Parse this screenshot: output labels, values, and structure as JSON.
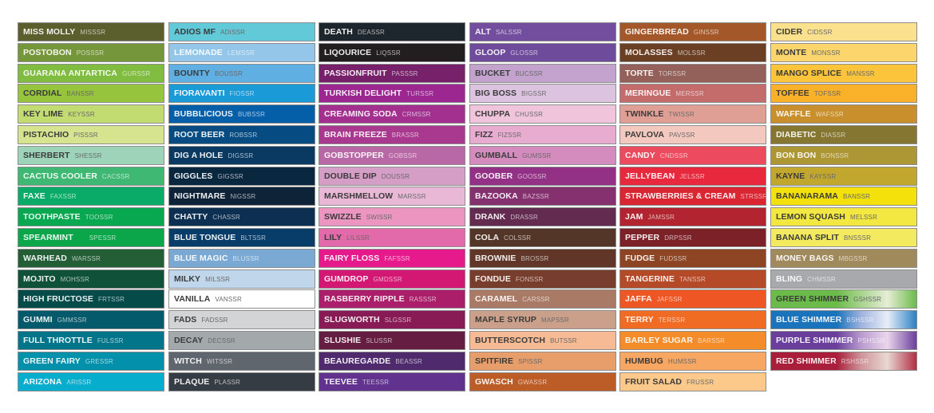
{
  "columns": [
    [
      {
        "name": "MISS MOLLY",
        "code": "MISSSR",
        "color": "#5b5e2d",
        "text": "light"
      },
      {
        "name": "POSTOBON",
        "code": "POSSSR",
        "color": "#76963b",
        "text": "light"
      },
      {
        "name": "GUARANA ANTARTICA",
        "code": "GURSSR",
        "color": "#80bc40",
        "text": "light"
      },
      {
        "name": "CORDIAL",
        "code": "BANSSR",
        "color": "#96c43c",
        "text": "dark"
      },
      {
        "name": "KEY LIME",
        "code": "KEYSSR",
        "color": "#c2dc72",
        "text": "dark"
      },
      {
        "name": "PISTACHIO",
        "code": "PISSSR",
        "color": "#d6e490",
        "text": "dark"
      },
      {
        "name": "SHERBERT",
        "code": "SHESSR",
        "color": "#9dd3b8",
        "text": "dark"
      },
      {
        "name": "CACTUS COOLER",
        "code": "CACSSR",
        "color": "#3fb874",
        "text": "light"
      },
      {
        "name": "FAXE",
        "code": "FAXSSR",
        "color": "#0aab68",
        "text": "light"
      },
      {
        "name": "TOOTHPASTE",
        "code": "TOOSSR",
        "color": "#07a84f",
        "text": "light"
      },
      {
        "name": "SPEARMINT",
        "code": "SPESSR",
        "color": "#0ba64a",
        "text": "light"
      },
      {
        "name": "WARHEAD",
        "code": "WARSSR",
        "color": "#245e37",
        "text": "light"
      },
      {
        "name": "MOJITO",
        "code": "MOHSSR",
        "color": "#0f5239",
        "text": "light"
      },
      {
        "name": "HIGH FRUCTOSE",
        "code": "FRTSSR",
        "color": "#044b4a",
        "text": "light"
      },
      {
        "name": "GUMMI",
        "code": "GMMSSR",
        "color": "#04596a",
        "text": "light"
      },
      {
        "name": "FULL THROTTLE",
        "code": "FULSSR",
        "color": "#03758a",
        "text": "light"
      },
      {
        "name": "GREEN FAIRY",
        "code": "GRESSR",
        "color": "#0390ab",
        "text": "light"
      },
      {
        "name": "ARIZONA",
        "code": "ARISSR",
        "color": "#06adcc",
        "text": "light"
      }
    ],
    [
      {
        "name": "ADIOS MF",
        "code": "ADISSR",
        "color": "#62c9d9",
        "text": "dark"
      },
      {
        "name": "LEMONADE",
        "code": "LEMSSR",
        "color": "#93c6e8",
        "text": "light"
      },
      {
        "name": "BOUNTY",
        "code": "BOUSSR",
        "color": "#5fafe2",
        "text": "dark"
      },
      {
        "name": "FIORAVANTI",
        "code": "FIOSSR",
        "color": "#1a9ad6",
        "text": "light"
      },
      {
        "name": "BUBBLICIOUS",
        "code": "BUBSSR",
        "color": "#045ea8",
        "text": "light"
      },
      {
        "name": "ROOT BEER",
        "code": "ROBSSR",
        "color": "#064c82",
        "text": "light"
      },
      {
        "name": "DIG A HOLE",
        "code": "DIGSSR",
        "color": "#0a3a62",
        "text": "light"
      },
      {
        "name": "GIGGLES",
        "code": "GIGSSR",
        "color": "#0a2740",
        "text": "light"
      },
      {
        "name": "NIGHTMARE",
        "code": "NIGSSR",
        "color": "#0e2238",
        "text": "light"
      },
      {
        "name": "CHATTY",
        "code": "CHASSR",
        "color": "#0c2f52",
        "text": "light"
      },
      {
        "name": "BLUE TONGUE",
        "code": "BLTSSR",
        "color": "#093d69",
        "text": "light"
      },
      {
        "name": "BLUE MAGIC",
        "code": "BLUSSR",
        "color": "#7aa9d3",
        "text": "light"
      },
      {
        "name": "MILKY",
        "code": "MILSSR",
        "color": "#c0d6eb",
        "text": "dark"
      },
      {
        "name": "VANILLA",
        "code": "VANSSR",
        "color": "#ffffff",
        "text": "dark"
      },
      {
        "name": "FADS",
        "code": "FADSSR",
        "color": "#d3d4d6",
        "text": "dark"
      },
      {
        "name": "DECAY",
        "code": "DECSSR",
        "color": "#a3a8ab",
        "text": "dark"
      },
      {
        "name": "WITCH",
        "code": "WITSSR",
        "color": "#5f666d",
        "text": "light"
      },
      {
        "name": "PLAQUE",
        "code": "PLASSR",
        "color": "#363c44",
        "text": "light"
      }
    ],
    [
      {
        "name": "DEATH",
        "code": "DEASSR",
        "color": "#1d252d",
        "text": "light"
      },
      {
        "name": "LIQOURICE",
        "code": "LIQSSR",
        "color": "#221e20",
        "text": "light"
      },
      {
        "name": "PASSIONFRUIT",
        "code": "PASSSR",
        "color": "#76216a",
        "text": "light"
      },
      {
        "name": "TURKISH DELIGHT",
        "code": "TURSSR",
        "color": "#9c2790",
        "text": "light"
      },
      {
        "name": "CREAMING SODA",
        "code": "CRMSSR",
        "color": "#a3308f",
        "text": "light"
      },
      {
        "name": "BRAIN FREEZE",
        "code": "BRASSR",
        "color": "#a8398e",
        "text": "light"
      },
      {
        "name": "GOBSTOPPER",
        "code": "GOBSSR",
        "color": "#b968a6",
        "text": "light"
      },
      {
        "name": "DOUBLE DIP",
        "code": "DOUSSR",
        "color": "#d59ec7",
        "text": "dark"
      },
      {
        "name": "MARSHMELLOW",
        "code": "MARSSR",
        "color": "#e9b8d7",
        "text": "dark"
      },
      {
        "name": "SWIZZLE",
        "code": "SWISSR",
        "color": "#ec95c0",
        "text": "dark"
      },
      {
        "name": "LILY",
        "code": "LILSSR",
        "color": "#e26aaa",
        "text": "dark"
      },
      {
        "name": "FAIRY FLOSS",
        "code": "FAFSSR",
        "color": "#e71a8c",
        "text": "light"
      },
      {
        "name": "GUMDROP",
        "code": "GMDSSR",
        "color": "#d31873",
        "text": "light"
      },
      {
        "name": "RASBERRY RIPPLE",
        "code": "RASSSR",
        "color": "#ab1f6a",
        "text": "light"
      },
      {
        "name": "SLUGWORTH",
        "code": "SLGSSR",
        "color": "#881a55",
        "text": "light"
      },
      {
        "name": "SLUSHIE",
        "code": "SLUSSR",
        "color": "#661d42",
        "text": "light"
      },
      {
        "name": "BEAUREGARDE",
        "code": "BEASSR",
        "color": "#4f2a6c",
        "text": "light"
      },
      {
        "name": "TEEVEE",
        "code": "TEESSR",
        "color": "#61338f",
        "text": "light"
      }
    ],
    [
      {
        "name": "ALT",
        "code": "SALSSR",
        "color": "#734e9e",
        "text": "light"
      },
      {
        "name": "GLOOP",
        "code": "GLOSSR",
        "color": "#6f4c9b",
        "text": "light"
      },
      {
        "name": "BUCKET",
        "code": "BUCSSR",
        "color": "#c3a3cd",
        "text": "dark"
      },
      {
        "name": "BIG BOSS",
        "code": "BIGSSR",
        "color": "#dcc4e0",
        "text": "dark"
      },
      {
        "name": "CHUPPA",
        "code": "CHUSSR",
        "color": "#f0c5dc",
        "text": "dark"
      },
      {
        "name": "FIZZ",
        "code": "FIZSSR",
        "color": "#e8acd0",
        "text": "dark"
      },
      {
        "name": "GUMBALL",
        "code": "GUMSSR",
        "color": "#d48bbe",
        "text": "dark"
      },
      {
        "name": "GOOBER",
        "code": "GOOSSR",
        "color": "#923185",
        "text": "light"
      },
      {
        "name": "BAZOOKA",
        "code": "BAZSSR",
        "color": "#85306f",
        "text": "light"
      },
      {
        "name": "DRANK",
        "code": "DRASSR",
        "color": "#642b50",
        "text": "light"
      },
      {
        "name": "COLA",
        "code": "COLSSR",
        "color": "#533627",
        "text": "light"
      },
      {
        "name": "BROWNIE",
        "code": "BROSSR",
        "color": "#5f3628",
        "text": "light"
      },
      {
        "name": "FONDUE",
        "code": "FONSSR",
        "color": "#773e2d",
        "text": "light"
      },
      {
        "name": "CARAMEL",
        "code": "CARSSR",
        "color": "#a97a65",
        "text": "light"
      },
      {
        "name": "MAPLE SYRUP",
        "code": "MAPSSR",
        "color": "#caa08a",
        "text": "dark"
      },
      {
        "name": "BUTTERSCOTCH",
        "code": "BUTSSR",
        "color": "#f6bb95",
        "text": "dark"
      },
      {
        "name": "SPITFIRE",
        "code": "SPISSR",
        "color": "#e89e6b",
        "text": "dark"
      },
      {
        "name": "GWASCH",
        "code": "GWASSR",
        "color": "#bc5d27",
        "text": "light"
      }
    ],
    [
      {
        "name": "GINGERBREAD",
        "code": "GINSSR",
        "color": "#a4582a",
        "text": "light"
      },
      {
        "name": "MOLASSES",
        "code": "MOLSSR",
        "color": "#6a3f24",
        "text": "light"
      },
      {
        "name": "TORTE",
        "code": "TORSSR",
        "color": "#936159",
        "text": "light"
      },
      {
        "name": "MERINGUE",
        "code": "MERSSR",
        "color": "#c46b6c",
        "text": "light"
      },
      {
        "name": "TWINKLE",
        "code": "TWISSR",
        "color": "#e09f94",
        "text": "dark"
      },
      {
        "name": "PAVLOVA",
        "code": "PAVSSR",
        "color": "#f3c8bf",
        "text": "dark"
      },
      {
        "name": "CANDY",
        "code": "CNDSSR",
        "color": "#ec4b5f",
        "text": "light"
      },
      {
        "name": "JELLYBEAN",
        "code": "JELSSR",
        "color": "#e8283d",
        "text": "light"
      },
      {
        "name": "STRAWBERRIES & CREAM",
        "code": "STRSSR",
        "color": "#d92632",
        "text": "light"
      },
      {
        "name": "JAM",
        "code": "JAMSSR",
        "color": "#b22430",
        "text": "light"
      },
      {
        "name": "PEPPER",
        "code": "DRPSSR",
        "color": "#7c2128",
        "text": "light"
      },
      {
        "name": "FUDGE",
        "code": "FUDSSR",
        "color": "#8e4523",
        "text": "light"
      },
      {
        "name": "TANGERINE",
        "code": "TANSSR",
        "color": "#b44a28",
        "text": "light"
      },
      {
        "name": "JAFFA",
        "code": "JAFSSR",
        "color": "#ee5623",
        "text": "light"
      },
      {
        "name": "TERRY",
        "code": "TERSSR",
        "color": "#f06b23",
        "text": "light"
      },
      {
        "name": "BARLEY SUGAR",
        "code": "BARSSR",
        "color": "#f48c2a",
        "text": "light"
      },
      {
        "name": "HUMBUG",
        "code": "HUMSSR",
        "color": "#f7a762",
        "text": "dark"
      },
      {
        "name": "FRUIT SALAD",
        "code": "FRUSSR",
        "color": "#fcc98a",
        "text": "dark"
      }
    ],
    [
      {
        "name": "CIDER",
        "code": "CIDSSR",
        "color": "#fbe08e",
        "text": "dark"
      },
      {
        "name": "MONTE",
        "code": "MONSSR",
        "color": "#fcd56c",
        "text": "dark"
      },
      {
        "name": "MANGO SPLICE",
        "code": "MANSSR",
        "color": "#fcc43a",
        "text": "dark"
      },
      {
        "name": "TOFFEE",
        "code": "TOFSSR",
        "color": "#fab12a",
        "text": "dark"
      },
      {
        "name": "WAFFLE",
        "code": "WAFSSR",
        "color": "#c88f2c",
        "text": "light"
      },
      {
        "name": "DIABETIC",
        "code": "DIASSR",
        "color": "#857631",
        "text": "light"
      },
      {
        "name": "BON BON",
        "code": "BONSSR",
        "color": "#ad9634",
        "text": "light"
      },
      {
        "name": "KAYNE",
        "code": "KAYSSR",
        "color": "#c2a72f",
        "text": "dark"
      },
      {
        "name": "BANANARAMA",
        "code": "BANSSR",
        "color": "#f4e10c",
        "text": "dark"
      },
      {
        "name": "LEMON SQUASH",
        "code": "MELSSR",
        "color": "#f3e842",
        "text": "dark"
      },
      {
        "name": "BANANA SPLIT",
        "code": "BNSSSR",
        "color": "#f3ea60",
        "text": "dark"
      },
      {
        "name": "MONEY BAGS",
        "code": "MBGSSR",
        "color": "#a08a5b",
        "text": "light"
      },
      {
        "name": "BLING",
        "code": "CHMSSR",
        "color": "#a7a9ac",
        "text": "light"
      },
      {
        "name": "GREEN SHIMMER",
        "code": "GSHSSR",
        "color": "#6bbb4a",
        "gradient": [
          "#6bbb4a",
          "#a8d48e",
          "#e6edd6",
          "#6bbb4a"
        ],
        "text": "dark"
      },
      {
        "name": "BLUE SHIMMER",
        "code": "BSHSSR",
        "color": "#1a73bb",
        "gradient": [
          "#1a73bb",
          "#9fb3de",
          "#e8eef8",
          "#2b80c5"
        ],
        "text": "light"
      },
      {
        "name": "PURPLE SHIMMER",
        "code": "PSHSSR",
        "color": "#6a3f9c",
        "gradient": [
          "#6a3f9c",
          "#b99bcf",
          "#ead6ec",
          "#6a3f9c"
        ],
        "text": "light"
      },
      {
        "name": "RED SHIMMER",
        "code": "RSHSSR",
        "color": "#a91e3a",
        "gradient": [
          "#a91e3a",
          "#cf959a",
          "#e8d8d2",
          "#b22f45"
        ],
        "text": "light"
      }
    ]
  ]
}
